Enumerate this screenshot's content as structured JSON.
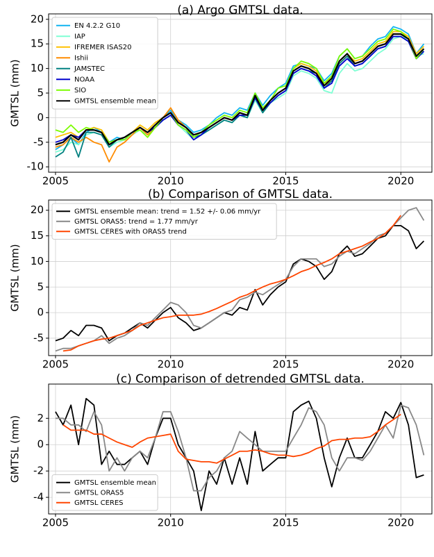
{
  "chart_data": [
    {
      "type": "line",
      "title": "(a) Argo GMTSL data.",
      "y_label": "GMTSL (mm)",
      "legend": "upper left",
      "grid": true,
      "x": [
        2005,
        2005.33,
        2005.67,
        2006,
        2006.33,
        2006.67,
        2007,
        2007.33,
        2007.67,
        2008,
        2008.33,
        2008.67,
        2009,
        2009.33,
        2009.67,
        2010,
        2010.33,
        2010.67,
        2011,
        2011.33,
        2011.67,
        2012,
        2012.33,
        2012.67,
        2013,
        2013.33,
        2013.67,
        2014,
        2014.33,
        2014.67,
        2015,
        2015.33,
        2015.67,
        2016,
        2016.33,
        2016.67,
        2017,
        2017.33,
        2017.67,
        2018,
        2018.33,
        2018.67,
        2019,
        2019.33,
        2019.67,
        2020,
        2020.33,
        2020.67,
        2021
      ],
      "xlim": [
        2004.7,
        2021.35
      ],
      "ylim": [
        -11.1,
        21.1
      ],
      "xticks": [
        2005,
        2010,
        2015,
        2020
      ],
      "yticks": [
        -10,
        -5,
        0,
        5,
        10,
        15,
        20
      ],
      "series": [
        {
          "name": "EN 4.2.2 G10",
          "color": "#10b4f0",
          "values": [
            -6.5,
            -5.5,
            -4,
            -5.5,
            -3,
            -2,
            -3,
            -5,
            -4,
            -4.5,
            -3.5,
            -2,
            -3,
            -1.5,
            0,
            1.5,
            -0.5,
            -1.5,
            -3,
            -2.5,
            -1.5,
            0,
            1,
            0.5,
            2,
            1.5,
            5,
            2.5,
            4.5,
            6,
            7,
            10.5,
            11,
            10.5,
            10,
            7.5,
            9,
            12.5,
            14,
            12,
            12.5,
            14.5,
            16,
            16.5,
            18.5,
            18,
            17,
            13,
            15
          ]
        },
        {
          "name": "IAP",
          "color": "#7fffd4",
          "values": [
            -7,
            -6.5,
            -5,
            -5.5,
            -3.5,
            -3,
            -3.5,
            -6,
            -5,
            -4.5,
            -3.5,
            -2.5,
            -3.5,
            -2,
            -0.5,
            0.5,
            -1.5,
            -3,
            -4.5,
            -3.5,
            -2.5,
            -1.5,
            -0.5,
            -1,
            0.5,
            0,
            3.5,
            1,
            3,
            4,
            5,
            8.5,
            9.5,
            9,
            8,
            5.5,
            5,
            9,
            11,
            9.5,
            10,
            11.5,
            13,
            14,
            16,
            16.5,
            16,
            12.5,
            13
          ]
        },
        {
          "name": "IFREMER ISAS20",
          "color": "#ffc000",
          "values": [
            -4,
            -3.5,
            -3,
            -4,
            -2.5,
            -2,
            -2.5,
            -5,
            -4.5,
            -4,
            -3,
            -1.5,
            -2.5,
            -1,
            0,
            1,
            -1,
            -2,
            -3.5,
            -3,
            -2,
            -1,
            0,
            -0.5,
            1,
            0.5,
            4.5,
            1.5,
            3.5,
            5,
            6,
            10,
            11,
            10.5,
            9.5,
            7,
            8,
            11.5,
            13,
            11.5,
            12,
            13.5,
            15,
            15.5,
            17.5,
            17.5,
            16.5,
            13,
            14.5
          ]
        },
        {
          "name": "Ishii",
          "color": "#ff8c00",
          "values": [
            -6,
            -5.5,
            -4,
            -5,
            -4,
            -5,
            -5.5,
            -9,
            -6,
            -5,
            -3.5,
            -2,
            -3.5,
            -2,
            0,
            2,
            -0.5,
            -2,
            -3.5,
            -3,
            -2,
            -1,
            0,
            -0.5,
            1,
            0.5,
            4.5,
            1.5,
            3.5,
            5,
            6,
            9.5,
            10.5,
            10,
            9,
            6.5,
            7.5,
            11,
            12.5,
            11,
            11.5,
            13,
            14.5,
            15,
            17,
            17,
            16,
            12.5,
            14
          ]
        },
        {
          "name": "JAMSTEC",
          "color": "#008080",
          "values": [
            -8,
            -7,
            -4,
            -8,
            -3,
            -3,
            -3.5,
            -6,
            -4.5,
            -4,
            -3,
            -2,
            -3,
            -1.5,
            0,
            1,
            -1,
            -2,
            -4,
            -3.5,
            -2.5,
            -1.5,
            -0.5,
            -1,
            0.5,
            0,
            4,
            1,
            3,
            4.5,
            5.5,
            9,
            10,
            9.5,
            9,
            6,
            7.5,
            11,
            12.5,
            10.5,
            11,
            12.5,
            14,
            14.5,
            16.5,
            16.5,
            15.5,
            12,
            13.5
          ]
        },
        {
          "name": "NOAA",
          "color": "#0000cd",
          "values": [
            -5,
            -4.5,
            -3.5,
            -4,
            -2.5,
            -2.5,
            -3,
            -5,
            -4.5,
            -4,
            -3,
            -2,
            -3,
            -2,
            -0.5,
            0.5,
            -1.5,
            -2.5,
            -4.5,
            -3.5,
            -2,
            -1,
            0,
            -0.5,
            0.5,
            0.5,
            4,
            1.5,
            3,
            4.5,
            5.5,
            9,
            10,
            9.5,
            8.5,
            6,
            7,
            10.5,
            12,
            10.5,
            11,
            12.5,
            14,
            14.5,
            16.5,
            16.5,
            15.5,
            12,
            13.5
          ]
        },
        {
          "name": "SIO",
          "color": "#7cfc00",
          "values": [
            -2.5,
            -3,
            -1.5,
            -3,
            -2,
            -2.5,
            -3,
            -5,
            -4.5,
            -4.5,
            -3,
            -2.5,
            -4,
            -2,
            0,
            1,
            -1.5,
            -2.5,
            -4,
            -3,
            -1.5,
            -0.5,
            0.5,
            0,
            1.5,
            1,
            5,
            2,
            3.5,
            6,
            6.5,
            10,
            11.5,
            11,
            10,
            7,
            8.5,
            12.5,
            14,
            12,
            12.5,
            14,
            15.5,
            16,
            18,
            17.5,
            16,
            12,
            14
          ]
        },
        {
          "name": "GMTSL ensemble mean",
          "color": "#000000",
          "values": [
            -5.5,
            -5,
            -3.5,
            -4.5,
            -2.5,
            -2.5,
            -3,
            -5.5,
            -4.5,
            -4,
            -3,
            -2,
            -3,
            -1.5,
            0,
            1,
            -1,
            -2,
            -3.5,
            -3,
            -2,
            -1,
            0,
            -0.5,
            1,
            0.5,
            4.5,
            1.5,
            3.5,
            5,
            6,
            9.5,
            10.5,
            10,
            9,
            6.5,
            8,
            11.5,
            13,
            11,
            11.5,
            13,
            14.5,
            15,
            17,
            17,
            16,
            12.5,
            14
          ]
        }
      ]
    },
    {
      "type": "line",
      "title": "(b) Comparison of GMTSL data.",
      "y_label": "GMTSL (mm)",
      "legend": "upper left",
      "grid": true,
      "x": [
        2005,
        2005.33,
        2005.67,
        2006,
        2006.33,
        2006.67,
        2007,
        2007.33,
        2007.67,
        2008,
        2008.33,
        2008.67,
        2009,
        2009.33,
        2009.67,
        2010,
        2010.33,
        2010.67,
        2011,
        2011.33,
        2011.67,
        2012,
        2012.33,
        2012.67,
        2013,
        2013.33,
        2013.67,
        2014,
        2014.33,
        2014.67,
        2015,
        2015.33,
        2015.67,
        2016,
        2016.33,
        2016.67,
        2017,
        2017.33,
        2017.67,
        2018,
        2018.33,
        2018.67,
        2019,
        2019.33,
        2019.67,
        2020,
        2020.33,
        2020.67,
        2021
      ],
      "xlim": [
        2004.7,
        2021.35
      ],
      "ylim": [
        -8.4,
        22
      ],
      "xticks": [
        2005,
        2010,
        2015,
        2020
      ],
      "yticks": [
        -5,
        0,
        5,
        10,
        15,
        20
      ],
      "series": [
        {
          "name": "GMTSL ensemble mean: trend = 1.52 +/- 0.06 mm/yr",
          "color": "#000000",
          "values": [
            -5.5,
            -5,
            -3.5,
            -4.5,
            -2.5,
            -2.5,
            -3,
            -5.5,
            -4.5,
            -4,
            -3,
            -2,
            -3,
            -1.5,
            0,
            1,
            -1,
            -2,
            -3.5,
            -3,
            -2,
            -1,
            0,
            -0.5,
            1,
            0.5,
            4.5,
            1.5,
            3.5,
            5,
            6,
            9.5,
            10.5,
            10,
            9,
            6.5,
            8,
            11.5,
            13,
            11,
            11.5,
            13,
            14.5,
            15,
            17,
            17,
            16,
            12.5,
            14
          ]
        },
        {
          "name": "GMTSL ORAS5: trend = 1.77 mm/yr",
          "color": "#888888",
          "values": [
            -7.5,
            -7,
            -7,
            -6.5,
            -6,
            -5.5,
            -4.5,
            -6,
            -5,
            -4.5,
            -3.5,
            -2,
            -2.5,
            -1,
            0.5,
            2,
            1.5,
            0,
            -2.5,
            -3,
            -2,
            -1,
            0,
            0.5,
            2.5,
            3,
            4,
            3.5,
            4.5,
            5.5,
            6.5,
            9,
            10.5,
            10.5,
            10.5,
            9,
            9.5,
            11,
            12,
            11.5,
            12.5,
            13.5,
            15,
            15.5,
            17,
            18.5,
            20,
            20.5,
            18
          ]
        },
        {
          "name": "GMTSL CERES with ORAS5 trend",
          "color": "#ff4500",
          "values": [
            null,
            -7.5,
            -7.3,
            -6.5,
            -6,
            -5.5,
            -5.2,
            -5,
            -4.5,
            -4,
            -3.5,
            -2.5,
            -2,
            -1.5,
            -1,
            -0.8,
            -0.5,
            -0.5,
            -0.5,
            -0.3,
            0.2,
            0.8,
            1.5,
            2.2,
            3,
            3.5,
            4.3,
            5,
            5.6,
            6,
            6.5,
            7.2,
            8,
            8.5,
            9.2,
            9.8,
            10.5,
            11.5,
            12,
            12.5,
            13,
            13.8,
            14.5,
            15.5,
            17,
            19,
            null,
            null,
            null
          ]
        }
      ]
    },
    {
      "type": "line",
      "title": "(c) Comparison of detrended GMTSL data.",
      "y_label": "GMTSL (mm)",
      "legend": "lower left",
      "grid": true,
      "x": [
        2005,
        2005.33,
        2005.67,
        2006,
        2006.33,
        2006.67,
        2007,
        2007.33,
        2007.67,
        2008,
        2008.33,
        2008.67,
        2009,
        2009.33,
        2009.67,
        2010,
        2010.33,
        2010.67,
        2011,
        2011.33,
        2011.67,
        2012,
        2012.33,
        2012.67,
        2013,
        2013.33,
        2013.67,
        2014,
        2014.33,
        2014.67,
        2015,
        2015.33,
        2015.67,
        2016,
        2016.33,
        2016.67,
        2017,
        2017.33,
        2017.67,
        2018,
        2018.33,
        2018.67,
        2019,
        2019.33,
        2019.67,
        2020,
        2020.33,
        2020.67,
        2021
      ],
      "xlim": [
        2004.7,
        2021.35
      ],
      "ylim": [
        -5.26,
        4.6
      ],
      "xticks": [
        2005,
        2010,
        2015,
        2020
      ],
      "yticks": [
        -4,
        -2,
        0,
        2
      ],
      "series": [
        {
          "name": "GMTSL ensemble mean",
          "color": "#000000",
          "values": [
            2.5,
            1.5,
            3,
            0,
            3.5,
            3,
            -1.5,
            -0.5,
            -1.5,
            -1.5,
            -1,
            -0.5,
            -1.5,
            0.5,
            2,
            2,
            0,
            -1,
            -2,
            -5,
            -2,
            -3,
            -1,
            -3,
            -1,
            -3,
            1,
            -2,
            -1.5,
            -1,
            -1,
            2.5,
            3,
            3.3,
            2,
            -1,
            -3.2,
            -1,
            0.5,
            -1,
            -1,
            0,
            1,
            2.5,
            2,
            3.2,
            1.5,
            -2.5,
            -2.3
          ]
        },
        {
          "name": "GMTSL ORAS5",
          "color": "#888888",
          "values": [
            2,
            2,
            1.5,
            1.5,
            1,
            2.5,
            1.5,
            -2,
            -1,
            -2,
            -1,
            -0.5,
            -1,
            0.5,
            2.5,
            2.5,
            1,
            -1,
            -3.5,
            -3.5,
            -2.5,
            -2,
            -1,
            -0.5,
            1,
            0.5,
            0,
            -0.5,
            -0.5,
            -0.5,
            -0.5,
            0.5,
            1.5,
            2.8,
            2.5,
            1.5,
            -1,
            -2,
            -1,
            -1,
            -1.2,
            -0.5,
            0.5,
            1.5,
            0.5,
            3,
            2.8,
            1.5,
            -0.8
          ]
        },
        {
          "name": "GMTSL CERES",
          "color": "#ff4500",
          "values": [
            null,
            1.5,
            1.1,
            1.1,
            1.1,
            0.8,
            0.8,
            0.5,
            0.2,
            0,
            -0.2,
            0.2,
            0.5,
            0.6,
            0.7,
            0.8,
            -0.5,
            -1.1,
            -1.2,
            -1.3,
            -1.3,
            -1.4,
            -1.1,
            -0.8,
            -0.5,
            -0.5,
            -0.4,
            -0.5,
            -0.7,
            -0.8,
            -0.8,
            -0.9,
            -0.8,
            -0.6,
            -0.3,
            -0.1,
            0.3,
            0.4,
            0.4,
            0.5,
            0.5,
            0.6,
            1.0,
            1.5,
            1.9,
            2.3,
            null,
            null,
            null
          ]
        }
      ]
    }
  ]
}
